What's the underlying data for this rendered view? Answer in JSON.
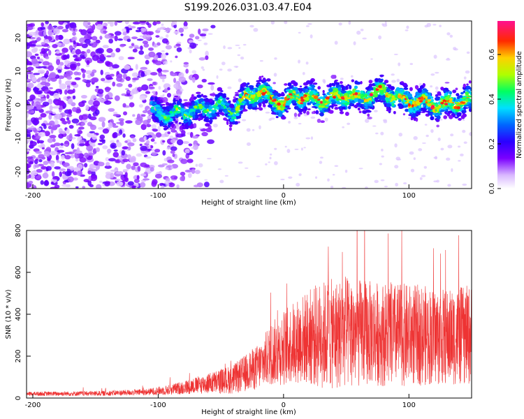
{
  "figure": {
    "title": "S199.2026.031.03.47.E04"
  },
  "chart_data": [
    {
      "type": "heatmap",
      "name": "spectrogram",
      "xlabel": "Height of straight line (km)",
      "ylabel": "Frequency (Hz)",
      "xlim": [
        -205,
        150
      ],
      "ylim": [
        -25,
        25
      ],
      "xticks": [
        "-200",
        "-100",
        "0",
        "100"
      ],
      "xtick_values": [
        -200,
        -100,
        0,
        100
      ],
      "yticks": [
        "-20",
        "-10",
        "0",
        "10",
        "20"
      ],
      "ytick_values": [
        -20,
        -10,
        0,
        10,
        20
      ],
      "colorbar": {
        "label": "Normalized spectral amplitude",
        "range": [
          0.0,
          0.75
        ],
        "ticks": [
          "0.0",
          "0.2",
          "0.4",
          "0.6"
        ],
        "tick_values": [
          0.0,
          0.2,
          0.4,
          0.6
        ]
      },
      "signal_track": {
        "description_x_km": [
          -105,
          -90,
          -75,
          -60,
          -50,
          -40,
          -30,
          -20,
          -10,
          0,
          10,
          20,
          30,
          40,
          50,
          60,
          70,
          80,
          90,
          100,
          110,
          120,
          130,
          140,
          150
        ],
        "center_hz": [
          -2,
          -3,
          -2,
          -1,
          0,
          -2,
          2,
          4,
          2,
          0,
          3,
          2,
          1,
          2,
          3,
          2,
          3,
          4,
          2,
          1,
          1,
          0,
          0,
          1,
          1
        ]
      },
      "noise_region_km": [
        -205,
        -80
      ]
    },
    {
      "type": "line",
      "name": "snr",
      "xlabel": "Height of straight line (km)",
      "ylabel": "SNR (10 * v/v)",
      "xlim": [
        -205,
        150
      ],
      "ylim": [
        0,
        800
      ],
      "xticks": [
        "-200",
        "-100",
        "0",
        "100"
      ],
      "xtick_values": [
        -200,
        -100,
        0,
        100
      ],
      "yticks": [
        "0",
        "200",
        "400",
        "600",
        "800"
      ],
      "ytick_values": [
        0,
        200,
        400,
        600,
        800
      ],
      "color": "#ee3333",
      "envelope": {
        "x": [
          -205,
          -150,
          -110,
          -90,
          -70,
          -50,
          -40,
          -30,
          -20,
          -10,
          0,
          10,
          20,
          30,
          50,
          70,
          90,
          110,
          130,
          150
        ],
        "mean": [
          20,
          22,
          28,
          40,
          60,
          80,
          90,
          120,
          150,
          210,
          240,
          270,
          290,
          300,
          310,
          310,
          300,
          300,
          290,
          300
        ],
        "spread": [
          10,
          12,
          15,
          25,
          40,
          60,
          70,
          90,
          110,
          150,
          180,
          200,
          230,
          260,
          270,
          250,
          250,
          240,
          230,
          240
        ]
      }
    }
  ]
}
